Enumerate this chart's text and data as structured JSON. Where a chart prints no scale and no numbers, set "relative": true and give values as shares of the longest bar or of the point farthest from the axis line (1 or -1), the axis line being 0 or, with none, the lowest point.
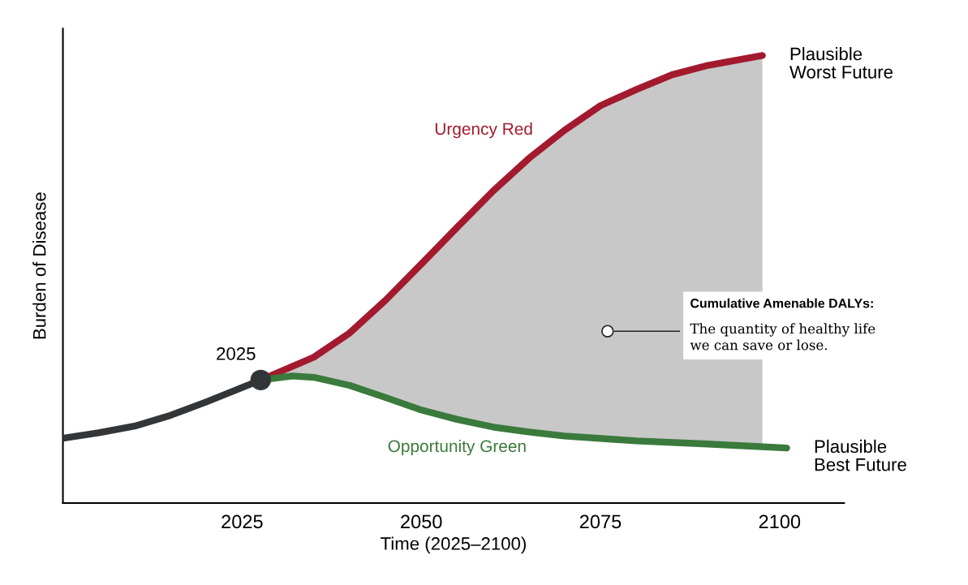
{
  "chart_data": {
    "type": "line",
    "relative": true,
    "xlabel": "Time (2025–2100)",
    "ylabel": "Burden of Disease",
    "xlim": [
      2000,
      2109
    ],
    "xticks": [
      2025,
      2050,
      2075,
      2100
    ],
    "tick_labels": "x",
    "grid": false,
    "legend": false,
    "series": [
      {
        "color": "#333638",
        "x": [
          2000,
          2005,
          2010,
          2015,
          2020,
          2025,
          2027.6
        ],
        "values": [
          0.145,
          0.157,
          0.172,
          0.196,
          0.226,
          0.258,
          0.275
        ]
      },
      {
        "name": "Urgency Red",
        "color": "#a31a2e",
        "x": [
          2027.6,
          2035,
          2040,
          2045,
          2050,
          2055,
          2060,
          2065,
          2070,
          2075,
          2080,
          2085,
          2090,
          2097.6
        ],
        "values": [
          0.275,
          0.326,
          0.38,
          0.453,
          0.534,
          0.616,
          0.697,
          0.77,
          0.833,
          0.888,
          0.924,
          0.957,
          0.978,
          1.0
        ],
        "lower": [
          0.275,
          0.281,
          0.263,
          0.236,
          0.208,
          0.187,
          0.17,
          0.159,
          0.15,
          0.144,
          0.139,
          0.135,
          0.132,
          0.126
        ],
        "upper": [
          0.275,
          0.326,
          0.38,
          0.453,
          0.534,
          0.616,
          0.697,
          0.77,
          0.833,
          0.888,
          0.924,
          0.957,
          0.978,
          1.0
        ]
      },
      {
        "name": "Opportunity Green",
        "color": "#3a7a3c",
        "x": [
          2027.6,
          2032,
          2035,
          2040,
          2045,
          2050,
          2055,
          2060,
          2065,
          2070,
          2080,
          2090,
          2101
        ],
        "values": [
          0.275,
          0.284,
          0.281,
          0.263,
          0.236,
          0.208,
          0.187,
          0.17,
          0.159,
          0.15,
          0.139,
          0.132,
          0.123
        ]
      },
      {
        "type": "scatter",
        "color": "#333638",
        "x": [
          2027.6
        ],
        "values": [
          0.275
        ]
      }
    ],
    "annotations": [
      {
        "text": "2025",
        "x": 2027.6,
        "y": 0.275
      },
      {
        "text": "Plausible\nWorst Future",
        "x": 2097.6,
        "y": 1.0
      },
      {
        "text": "Plausible\nBest Future",
        "x": 2101,
        "y": 0.123
      },
      {
        "text": "Cumulative Amenable DALYs:\nThe quantity of healthy life\nwe can save or lose.",
        "x": 2076,
        "y": 0.384
      }
    ]
  }
}
